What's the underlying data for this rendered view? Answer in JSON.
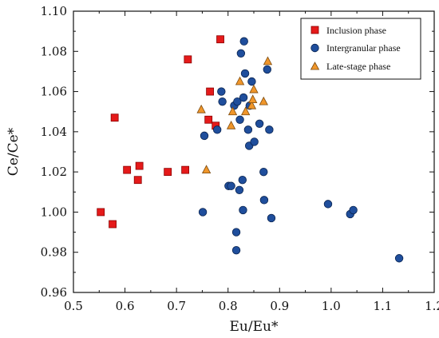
{
  "chart_data": {
    "type": "scatter",
    "title": "",
    "xlabel": "Eu/Eu*",
    "ylabel": "Ce/Ce*",
    "xlim": [
      0.5,
      1.2
    ],
    "ylim": [
      0.96,
      1.1
    ],
    "x_ticks": [
      "0.5",
      "0.6",
      "0.7",
      "0.8",
      "0.9",
      "1.0",
      "1.1",
      "1.2"
    ],
    "y_ticks": [
      "0.96",
      "0.98",
      "1.00",
      "1.02",
      "1.04",
      "1.06",
      "1.08",
      "1.10"
    ],
    "grid": false,
    "legend_position": "top-right",
    "series": [
      {
        "name": "Inclusion phase",
        "marker": "square",
        "color": "#e51a1a",
        "points": [
          [
            0.553,
            1.0
          ],
          [
            0.576,
            0.994
          ],
          [
            0.58,
            1.047
          ],
          [
            0.604,
            1.021
          ],
          [
            0.625,
            1.016
          ],
          [
            0.628,
            1.023
          ],
          [
            0.683,
            1.02
          ],
          [
            0.717,
            1.021
          ],
          [
            0.722,
            1.076
          ],
          [
            0.762,
            1.046
          ],
          [
            0.765,
            1.06
          ],
          [
            0.776,
            1.043
          ],
          [
            0.785,
            1.086
          ]
        ]
      },
      {
        "name": "Intergranular phase",
        "marker": "circle",
        "color": "#1f4e9c",
        "points": [
          [
            0.751,
            1.0
          ],
          [
            0.754,
            1.038
          ],
          [
            0.779,
            1.041
          ],
          [
            0.787,
            1.06
          ],
          [
            0.789,
            1.055
          ],
          [
            0.801,
            1.013
          ],
          [
            0.806,
            1.013
          ],
          [
            0.812,
            1.053
          ],
          [
            0.816,
            0.99
          ],
          [
            0.816,
            0.981
          ],
          [
            0.818,
            1.055
          ],
          [
            0.822,
            1.011
          ],
          [
            0.823,
            1.046
          ],
          [
            0.825,
            1.079
          ],
          [
            0.828,
            1.016
          ],
          [
            0.829,
            1.001
          ],
          [
            0.83,
            1.057
          ],
          [
            0.831,
            1.085
          ],
          [
            0.833,
            1.069
          ],
          [
            0.839,
            1.041
          ],
          [
            0.841,
            1.033
          ],
          [
            0.842,
            1.053
          ],
          [
            0.846,
            1.065
          ],
          [
            0.851,
            1.035
          ],
          [
            0.861,
            1.044
          ],
          [
            0.869,
            1.02
          ],
          [
            0.87,
            1.006
          ],
          [
            0.876,
            1.071
          ],
          [
            0.88,
            1.041
          ],
          [
            0.884,
            0.997
          ],
          [
            0.994,
            1.004
          ],
          [
            1.037,
            0.999
          ],
          [
            1.043,
            1.001
          ],
          [
            1.132,
            0.977
          ]
        ]
      },
      {
        "name": "Late-stage phase",
        "marker": "triangle",
        "color": "#f0962a",
        "points": [
          [
            0.748,
            1.051
          ],
          [
            0.758,
            1.021
          ],
          [
            0.806,
            1.043
          ],
          [
            0.809,
            1.05
          ],
          [
            0.823,
            1.065
          ],
          [
            0.834,
            1.05
          ],
          [
            0.846,
            1.053
          ],
          [
            0.848,
            1.056
          ],
          [
            0.85,
            1.061
          ],
          [
            0.869,
            1.055
          ],
          [
            0.877,
            1.075
          ]
        ]
      }
    ]
  }
}
